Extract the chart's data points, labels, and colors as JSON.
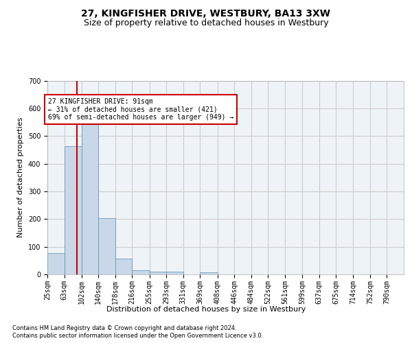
{
  "title_line1": "27, KINGFISHER DRIVE, WESTBURY, BA13 3XW",
  "title_line2": "Size of property relative to detached houses in Westbury",
  "xlabel": "Distribution of detached houses by size in Westbury",
  "ylabel": "Number of detached properties",
  "bin_labels": [
    "25sqm",
    "63sqm",
    "102sqm",
    "140sqm",
    "178sqm",
    "216sqm",
    "255sqm",
    "293sqm",
    "331sqm",
    "369sqm",
    "408sqm",
    "446sqm",
    "484sqm",
    "522sqm",
    "561sqm",
    "599sqm",
    "637sqm",
    "675sqm",
    "714sqm",
    "752sqm",
    "790sqm"
  ],
  "bin_edges": [
    25,
    63,
    102,
    140,
    178,
    216,
    255,
    293,
    331,
    369,
    408,
    446,
    484,
    522,
    561,
    599,
    637,
    675,
    714,
    752,
    790,
    828
  ],
  "bar_heights": [
    78,
    463,
    551,
    204,
    57,
    15,
    10,
    10,
    0,
    8,
    0,
    0,
    0,
    0,
    0,
    0,
    0,
    0,
    0,
    0,
    0
  ],
  "bar_color": "#c8d8e8",
  "bar_edge_color": "#5a8ab0",
  "property_size": 91,
  "vline_color": "#cc0000",
  "annotation_text": "27 KINGFISHER DRIVE: 91sqm\n← 31% of detached houses are smaller (421)\n69% of semi-detached houses are larger (949) →",
  "annotation_box_color": "#cc0000",
  "ylim": [
    0,
    700
  ],
  "yticks": [
    0,
    100,
    200,
    300,
    400,
    500,
    600,
    700
  ],
  "grid_color": "#cccccc",
  "bg_color": "#eef3f8",
  "footnote1": "Contains HM Land Registry data © Crown copyright and database right 2024.",
  "footnote2": "Contains public sector information licensed under the Open Government Licence v3.0.",
  "title_fontsize": 10,
  "subtitle_fontsize": 9,
  "axis_label_fontsize": 8,
  "tick_fontsize": 7,
  "annotation_fontsize": 7,
  "footnote_fontsize": 6
}
